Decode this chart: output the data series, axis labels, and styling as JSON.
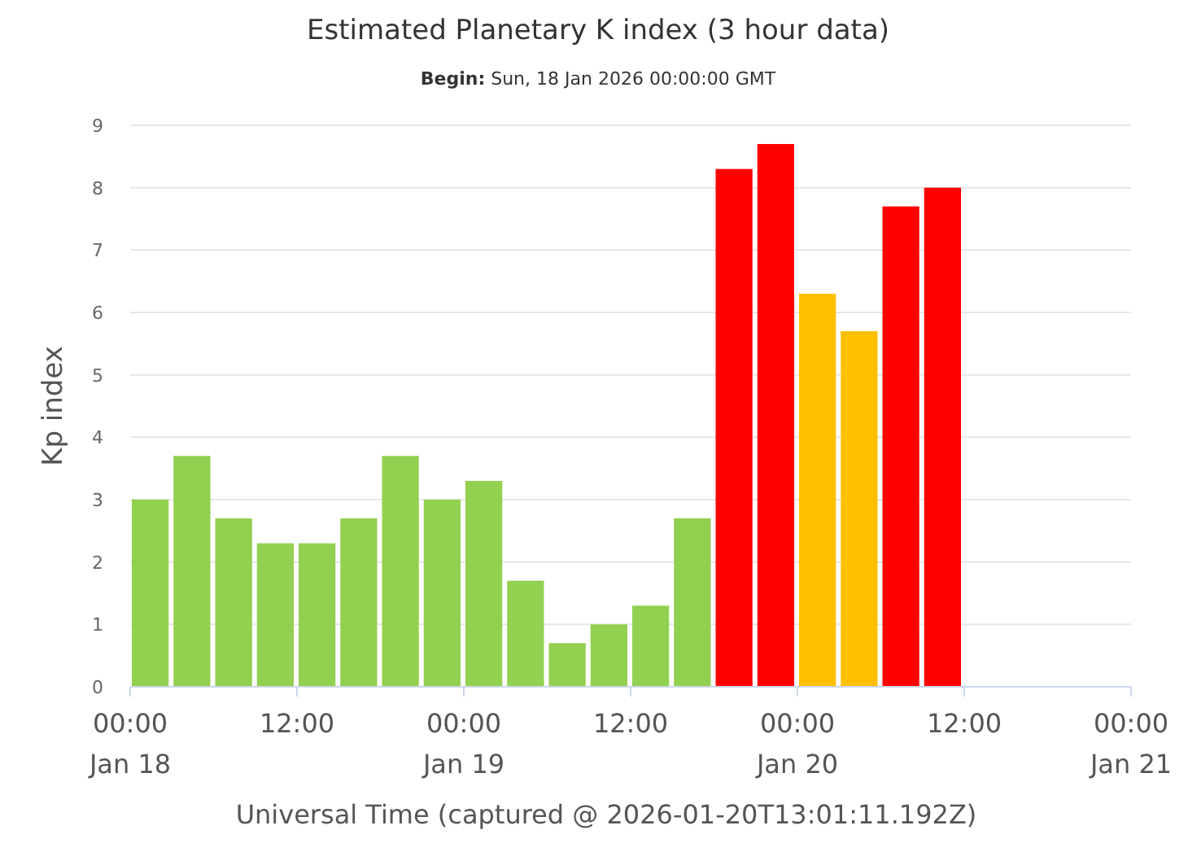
{
  "chart_data": {
    "type": "bar",
    "title": "Estimated Planetary K index (3 hour data)",
    "subtitle": "Begin: Sun, 18 Jan 2026 00:00:00 GMT",
    "xlabel": "Universal Time (captured @ 2026-01-20T13:01:11.192Z)",
    "ylabel": "Kp index",
    "x": [
      "2026-01-18T01:30",
      "2026-01-18T04:30",
      "2026-01-18T07:30",
      "2026-01-18T10:30",
      "2026-01-18T13:30",
      "2026-01-18T16:30",
      "2026-01-18T19:30",
      "2026-01-18T22:30",
      "2026-01-19T01:30",
      "2026-01-19T04:30",
      "2026-01-19T07:30",
      "2026-01-19T10:30",
      "2026-01-19T13:30",
      "2026-01-19T16:30",
      "2026-01-19T19:30",
      "2026-01-19T22:30",
      "2026-01-20T01:30",
      "2026-01-20T04:30",
      "2026-01-20T07:30",
      "2026-01-20T10:30"
    ],
    "values": [
      3,
      3.7,
      2.7,
      2.3,
      2.3,
      2.7,
      3.7,
      3,
      3.3,
      1.7,
      0.7,
      1,
      1.3,
      2.7,
      8.3,
      8.7,
      6.3,
      5.7,
      7.7,
      8
    ],
    "colors": [
      "#92d050",
      "#92d050",
      "#92d050",
      "#92d050",
      "#92d050",
      "#92d050",
      "#92d050",
      "#92d050",
      "#92d050",
      "#92d050",
      "#92d050",
      "#92d050",
      "#92d050",
      "#92d050",
      "#ff0000",
      "#ff0000",
      "#ffc000",
      "#ffc000",
      "#ff0000",
      "#ff0000"
    ],
    "xlim": [
      "2026-01-18T00:00",
      "2026-01-21T00:00"
    ],
    "xticks": [
      {
        "value": "2026-01-18T00:00",
        "label": "00:00\nJan 18"
      },
      {
        "value": "2026-01-18T12:00",
        "label": "12:00"
      },
      {
        "value": "2026-01-19T00:00",
        "label": "00:00\nJan 19"
      },
      {
        "value": "2026-01-19T12:00",
        "label": "12:00"
      },
      {
        "value": "2026-01-20T00:00",
        "label": "00:00\nJan 20"
      },
      {
        "value": "2026-01-20T12:00",
        "label": "12:00"
      },
      {
        "value": "2026-01-21T00:00",
        "label": "00:00\nJan 21"
      }
    ],
    "ylim": [
      0,
      9
    ],
    "yticks": [
      0,
      1,
      2,
      3,
      4,
      5,
      6,
      7,
      8,
      9
    ],
    "grid": "y"
  }
}
